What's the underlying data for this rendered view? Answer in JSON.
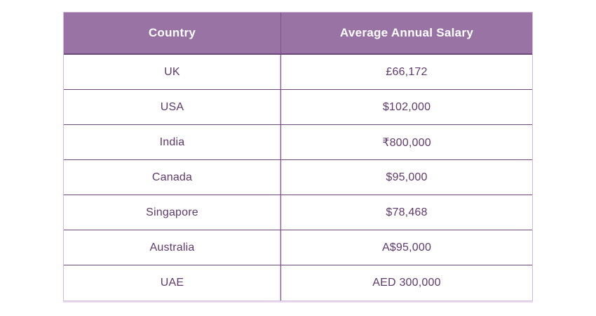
{
  "table": {
    "headers": [
      "Country",
      "Average Annual Salary"
    ],
    "rows": [
      {
        "country": "UK",
        "salary": "£66,172"
      },
      {
        "country": "USA",
        "salary": "$102,000"
      },
      {
        "country": "India",
        "salary": "₹800,000"
      },
      {
        "country": "Canada",
        "salary": "$95,000"
      },
      {
        "country": "Singapore",
        "salary": "$78,468"
      },
      {
        "country": "Australia",
        "salary": "A$95,000"
      },
      {
        "country": "UAE",
        "salary": "AED 300,000"
      }
    ]
  },
  "colors": {
    "header_bg": "#9873a3",
    "header_text": "#ffffff",
    "body_text": "#5d3a68",
    "inner_border": "#6b4878",
    "outer_border": "#d3b8d9",
    "page_bg": "#ffffff"
  },
  "chart_data": {
    "type": "table",
    "title": "",
    "columns": [
      "Country",
      "Average Annual Salary"
    ],
    "rows": [
      [
        "UK",
        "£66,172"
      ],
      [
        "USA",
        "$102,000"
      ],
      [
        "India",
        "₹800,000"
      ],
      [
        "Canada",
        "$95,000"
      ],
      [
        "Singapore",
        "$78,468"
      ],
      [
        "Australia",
        "A$95,000"
      ],
      [
        "UAE",
        "AED 300,000"
      ]
    ]
  }
}
